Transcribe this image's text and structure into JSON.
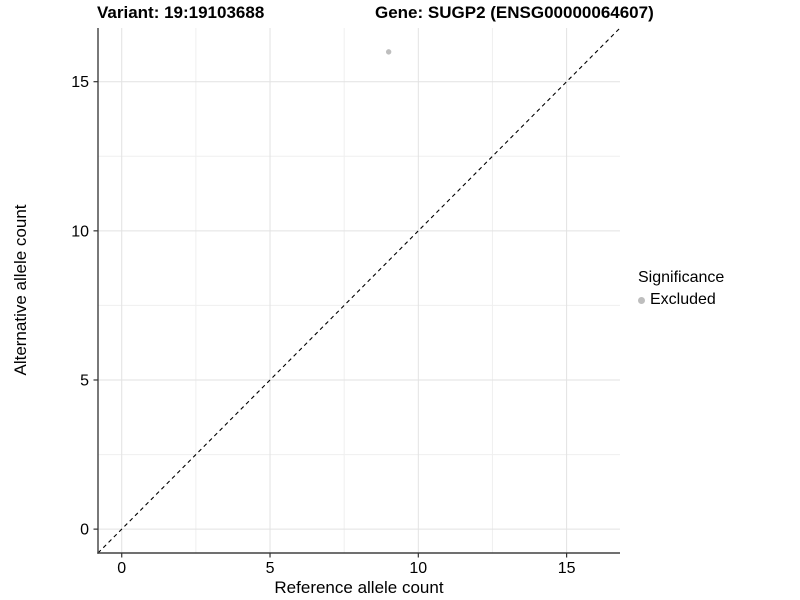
{
  "colors": {
    "background": "#ffffff",
    "axis_line": "#404040",
    "tick_mark": "#333333",
    "grid_major": "#e2e2e2",
    "grid_minor": "#efefef",
    "tick_label": "#000000",
    "title_text": "#000000",
    "point_excluded": "#bebebe",
    "reference_line": "#000000"
  },
  "chart_data": {
    "type": "scatter",
    "title_left": "Variant: 19:19103688",
    "title_right": "Gene: SUGP2 (ENSG00000064607)",
    "xlabel": "Reference allele count",
    "ylabel": "Alternative allele count",
    "xlim": [
      -0.8,
      16.8
    ],
    "ylim": [
      -0.8,
      16.8
    ],
    "x_ticks": [
      0,
      5,
      10,
      15
    ],
    "y_ticks": [
      0,
      5,
      10,
      15
    ],
    "x_minor_ticks": [
      2.5,
      7.5,
      12.5
    ],
    "y_minor_ticks": [
      2.5,
      7.5,
      12.5
    ],
    "grid": "major and minor gridlines, very light gray on white panel; axis lines on left and bottom only",
    "series": [
      {
        "name": "Excluded",
        "marker": "circle",
        "color": "#bebebe",
        "points": [
          {
            "x": 9,
            "y": 16
          }
        ]
      }
    ],
    "reference_line": {
      "equation": "y = x",
      "style": "dashed",
      "color": "#000000",
      "from": [
        -0.8,
        -0.8
      ],
      "to": [
        16.8,
        16.8
      ]
    },
    "legend": {
      "title": "Significance",
      "position": "right",
      "entries": [
        {
          "label": "Excluded",
          "marker": "circle",
          "color": "#bebebe"
        }
      ]
    }
  }
}
